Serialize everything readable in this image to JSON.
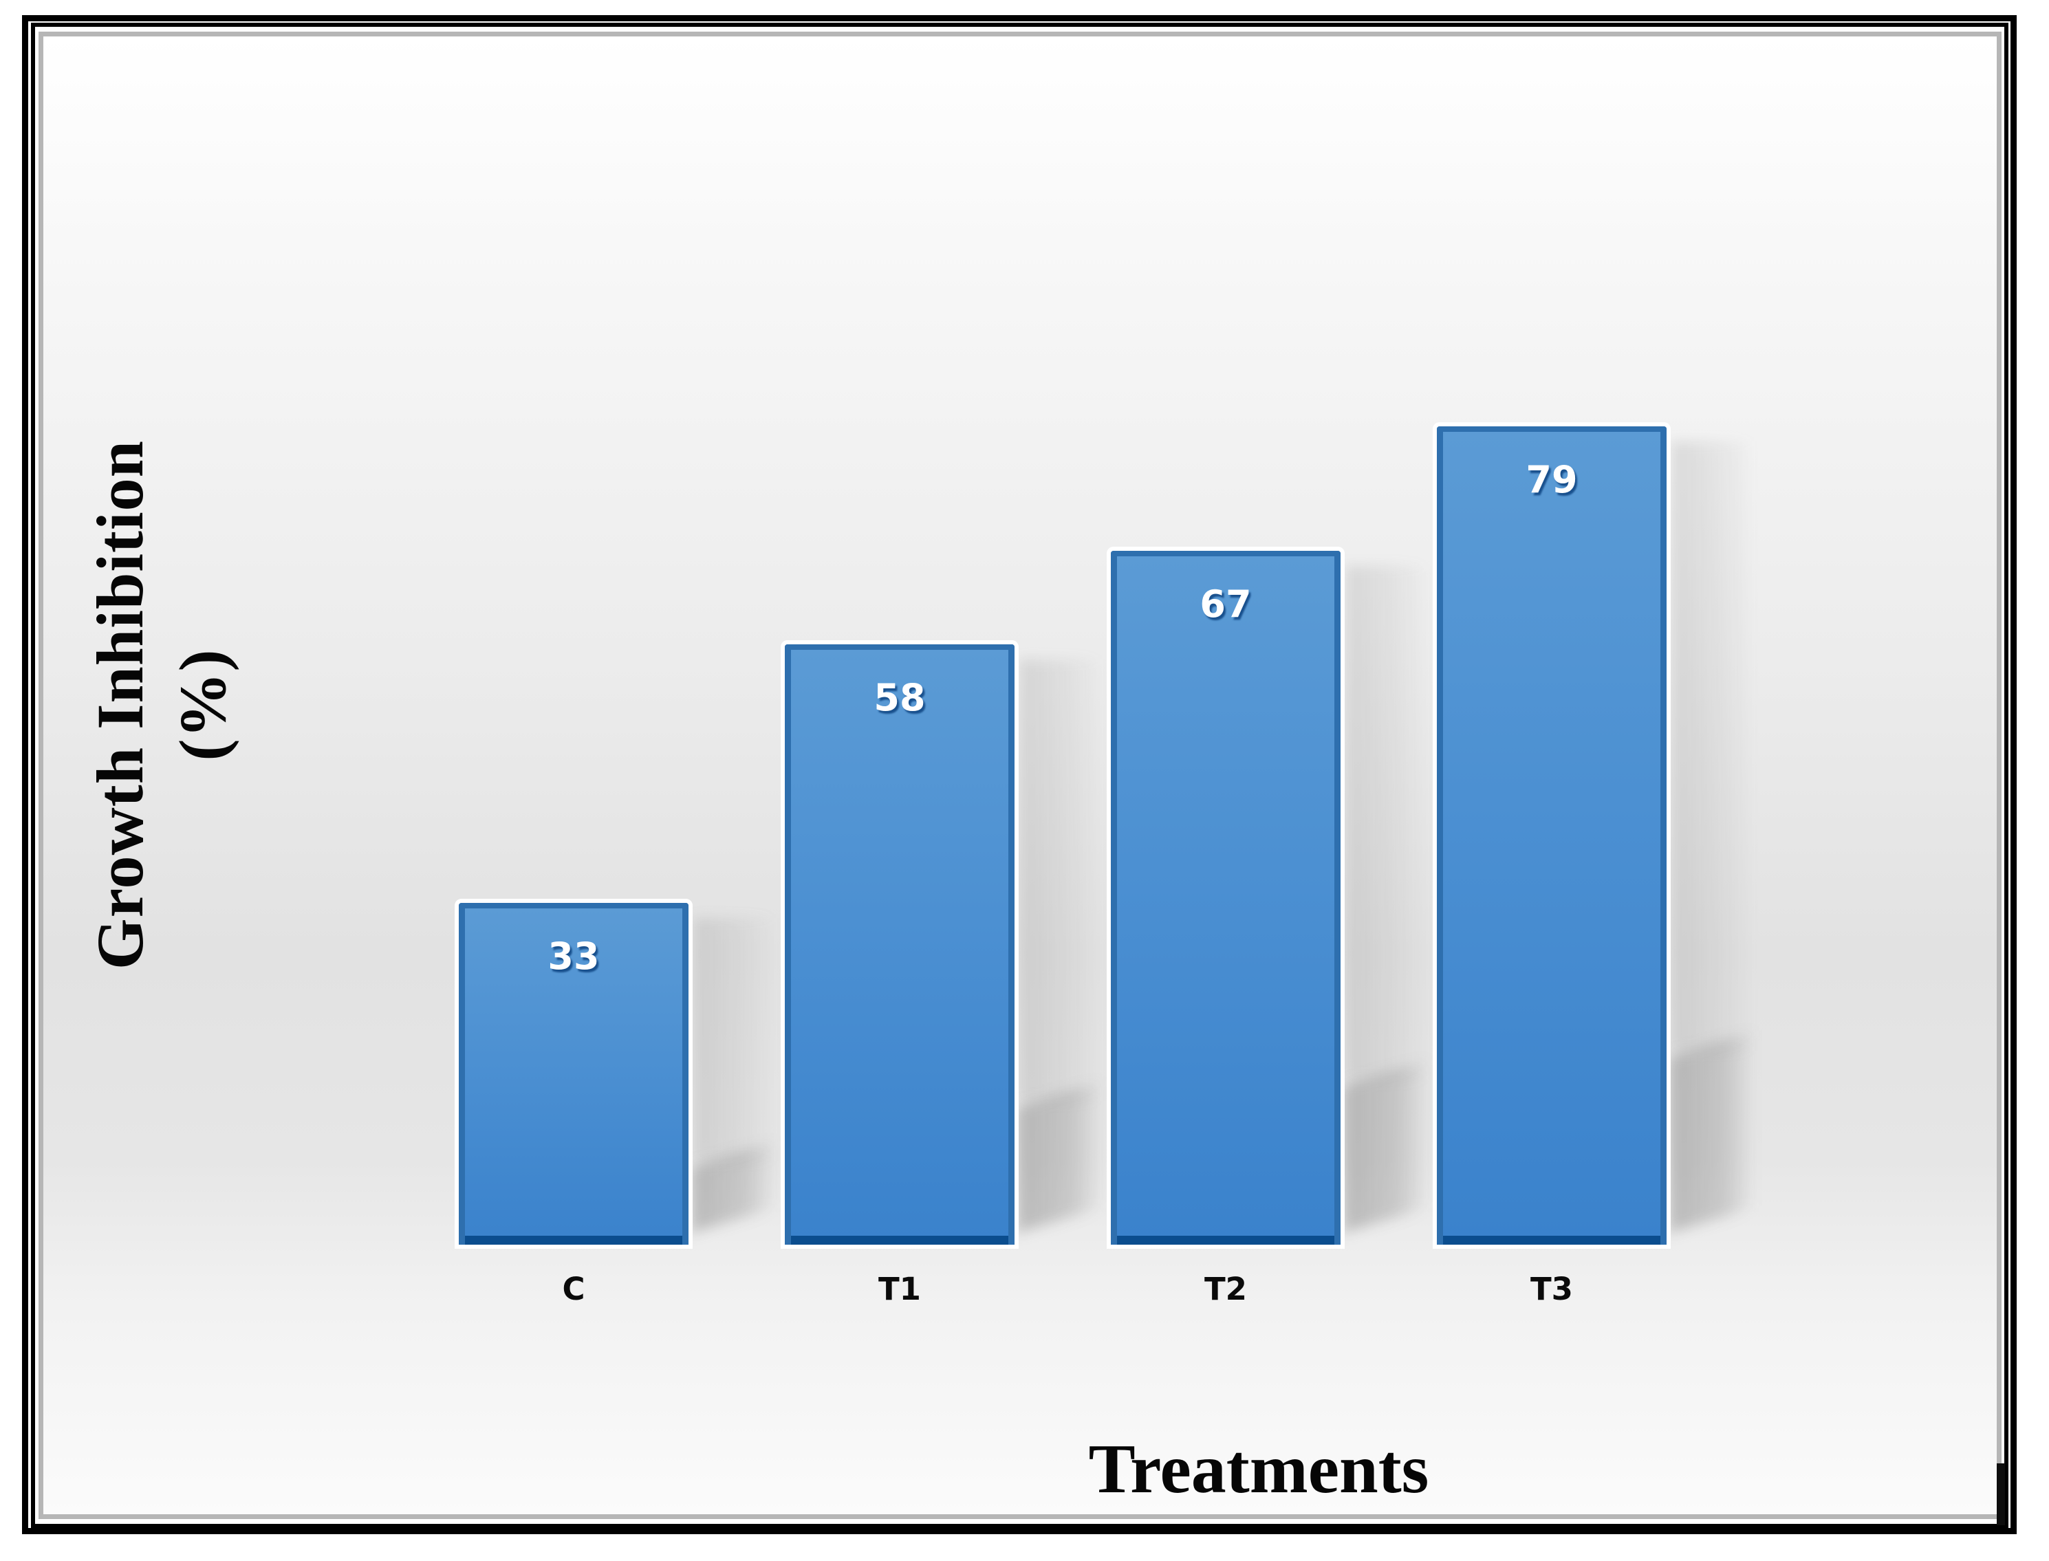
{
  "chart_data": {
    "type": "bar",
    "categories": [
      "C",
      "T1",
      "T2",
      "T3"
    ],
    "values": [
      33,
      58,
      67,
      79
    ],
    "data_labels": [
      "33",
      "58",
      "67",
      "79"
    ],
    "title": "",
    "xlabel": "Treatments",
    "ylabel": "Growth Inhibition (%)",
    "grid": false,
    "legend": false,
    "bar_fill_top": "#5b9bd5",
    "bar_fill_bottom": "#3a82cc",
    "bar_border": "#2e6fae",
    "bar_bottom_strip": "#0b4d8e",
    "bar_outline": "#ffffff",
    "value_label_color": "#ffffff",
    "tick_label_color": "#0a0a0a",
    "axis_title_color": "#060606"
  },
  "frame": {
    "outer_border_color": "#000000",
    "mid_border_color": "#000000",
    "inner_border_color": "#b6b6b6"
  }
}
